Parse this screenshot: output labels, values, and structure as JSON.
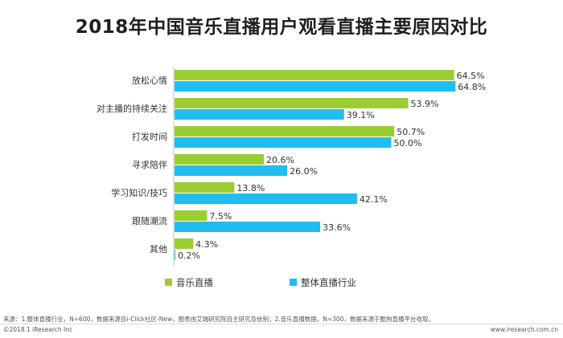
{
  "chart_data": {
    "type": "bar",
    "orientation": "horizontal",
    "title": "2018年中国音乐直播用户观看直播主要原因对比",
    "categories": [
      "放松心情",
      "对主播的持续关注",
      "打发时间",
      "寻求陪伴",
      "学习知识/技巧",
      "跟随潮流",
      "其他"
    ],
    "series": [
      {
        "name": "音乐直播",
        "color": "#9acd32",
        "values": [
          64.5,
          53.9,
          50.7,
          20.6,
          13.8,
          7.5,
          4.3
        ],
        "labels": [
          "64.5%",
          "53.9%",
          "50.7%",
          "20.6%",
          "13.8%",
          "7.5%",
          "4.3%"
        ]
      },
      {
        "name": "整体直播行业",
        "color": "#1fbdf0",
        "values": [
          64.8,
          39.1,
          50.0,
          26.0,
          42.1,
          33.6,
          0.2
        ],
        "labels": [
          "64.8%",
          "39.1%",
          "50.0%",
          "26.0%",
          "42.1%",
          "33.6%",
          "0.2%"
        ]
      }
    ],
    "xlim": [
      0,
      70
    ],
    "grid": false,
    "legend_position": "bottom"
  },
  "footer": {
    "note": "来源：1.整体直播行业，N=600，数据来源自i-Click社区-New，图表由艾瑞研究院自主研究及绘制；2.音乐直播数据，N=300，数据来源于酷狗直播平台收取。",
    "copyright": "©2018.1 iResearch Inc",
    "url": "www.iresearch.com.cn"
  }
}
